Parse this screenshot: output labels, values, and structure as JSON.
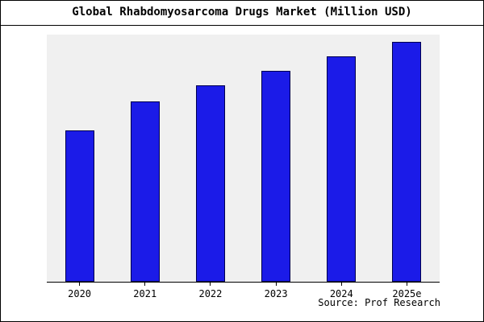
{
  "title": "Global Rhabdomyosarcoma Drugs Market (Million USD)",
  "source": "Source: Prof Research",
  "chart_data": {
    "type": "bar",
    "title": "Global Rhabdomyosarcoma Drugs Market (Million USD)",
    "categories": [
      "2020",
      "2021",
      "2022",
      "2023",
      "2024",
      "2025e"
    ],
    "values": [
      63,
      75,
      82,
      88,
      94,
      100
    ],
    "xlabel": "",
    "ylabel": "",
    "ylim": [
      0,
      103
    ],
    "grid": false,
    "legend": false,
    "bar_fill": "#1b1be8",
    "bar_border": "#00004f",
    "plot_bg": "#f0f0f0",
    "source_note": "Source: Prof Research"
  }
}
